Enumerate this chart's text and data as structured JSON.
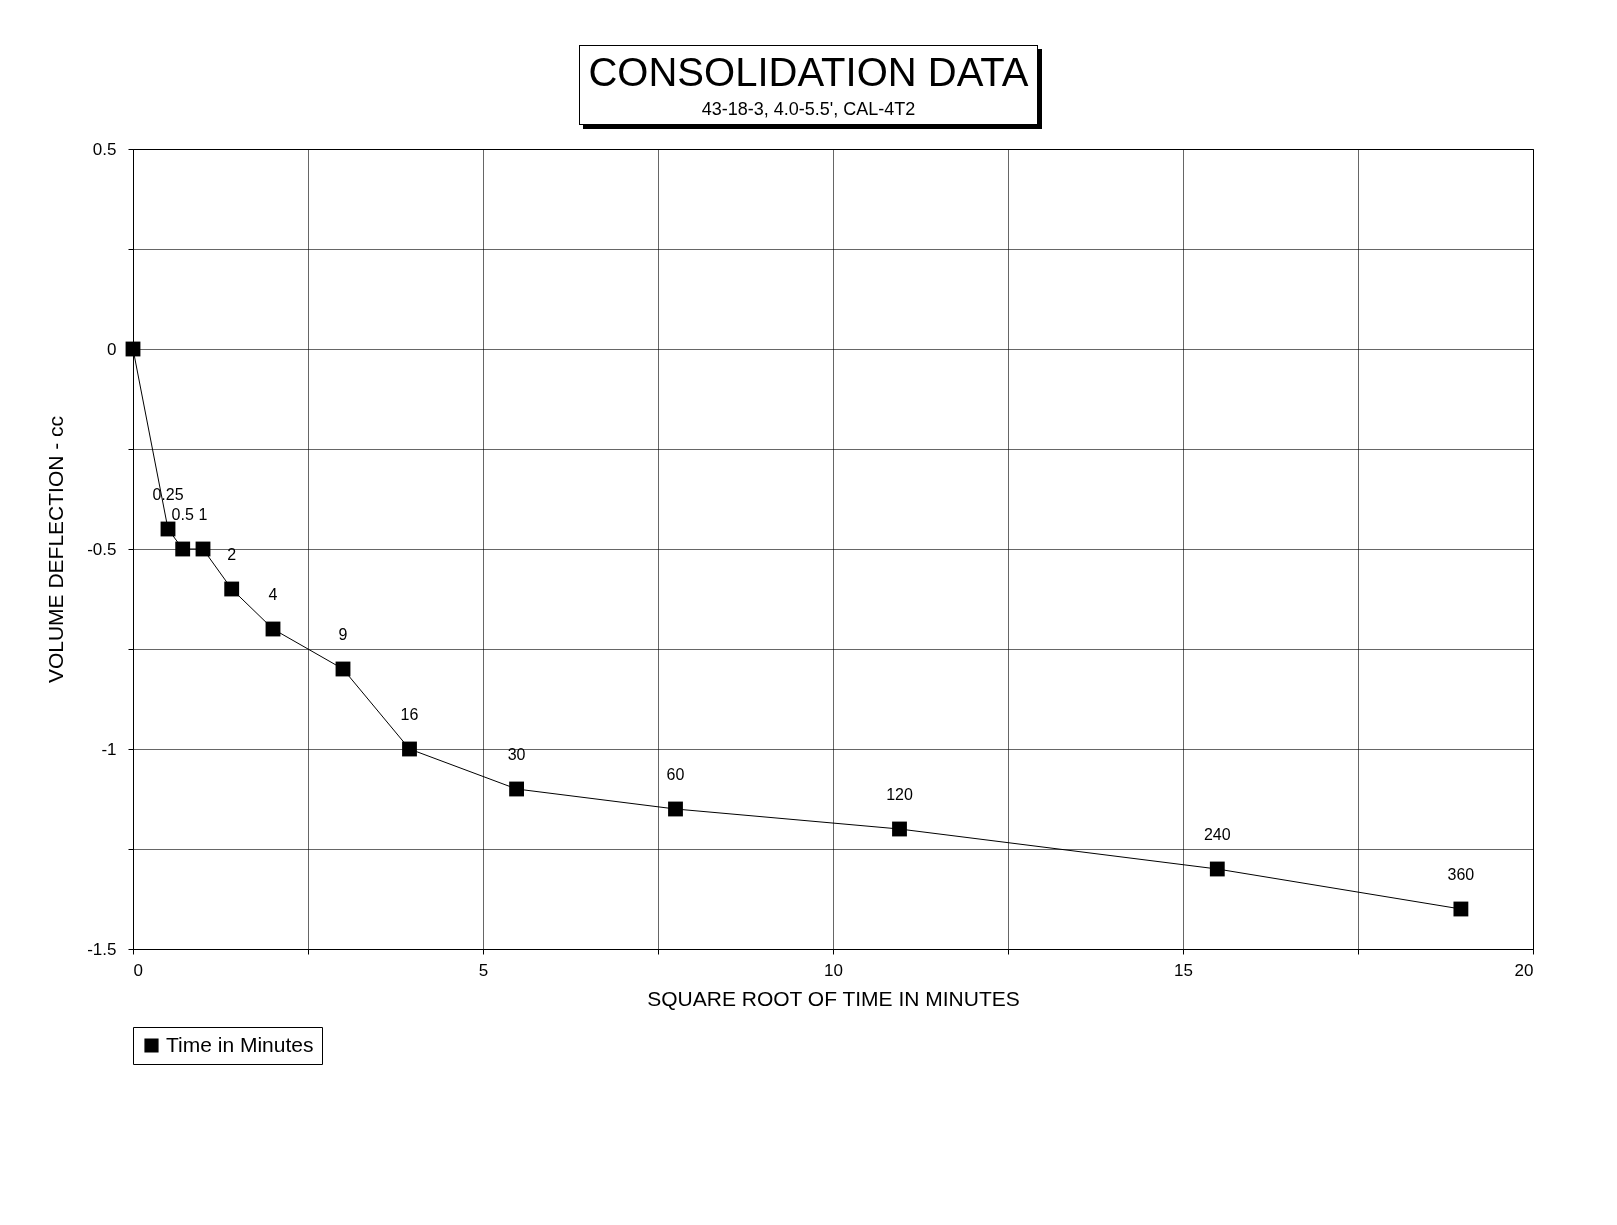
{
  "chart_data": {
    "type": "line",
    "title": "CONSOLIDATION DATA",
    "subtitle": "43-18-3, 4.0-5.5', CAL-4T2",
    "xlabel": "SQUARE ROOT OF TIME IN MINUTES",
    "ylabel": "VOLUME DEFLECTION - cc",
    "series": [
      {
        "name": "Time in Minutes",
        "color": "#000000",
        "x": [
          0,
          0.5,
          0.71,
          1,
          1.41,
          2,
          3,
          3.95,
          5.48,
          7.75,
          10.95,
          15.49,
          18.97
        ],
        "values": [
          0,
          -0.45,
          -0.5,
          -0.5,
          -0.6,
          -0.7,
          -0.8,
          -1,
          -1.1,
          -1.15,
          -1.2,
          -1.3,
          -1.4
        ]
      }
    ],
    "annotations": [
      {
        "text": "0.25",
        "x": 0.5,
        "y": -0.45
      },
      {
        "text": "0.5",
        "x": 0.71,
        "y": -0.5
      },
      {
        "text": "1",
        "x": 1,
        "y": -0.5
      },
      {
        "text": "2",
        "x": 1.41,
        "y": -0.6
      },
      {
        "text": "4",
        "x": 2,
        "y": -0.7
      },
      {
        "text": "9",
        "x": 3,
        "y": -0.8
      },
      {
        "text": "16",
        "x": 3.95,
        "y": -1
      },
      {
        "text": "30",
        "x": 5.48,
        "y": -1.1
      },
      {
        "text": "60",
        "x": 7.75,
        "y": -1.15
      },
      {
        "text": "120",
        "x": 10.95,
        "y": -1.2
      },
      {
        "text": "240",
        "x": 15.49,
        "y": -1.3
      },
      {
        "text": "360",
        "x": 18.97,
        "y": -1.4
      }
    ],
    "xlim": [
      0,
      20
    ],
    "xticks": [
      0,
      {
        "value": 2.5,
        "label": null
      },
      5,
      {
        "value": 7.5,
        "label": null
      },
      10,
      {
        "value": 12.5,
        "label": null
      },
      15,
      {
        "value": 17.5,
        "label": null
      },
      20
    ],
    "ylim": [
      -1.5,
      0.5
    ],
    "yticks": [
      -1.5,
      {
        "value": -1.25,
        "label": null
      },
      -1,
      {
        "value": -0.75,
        "label": null
      },
      -0.5,
      {
        "value": -0.25,
        "label": null
      },
      0,
      {
        "value": 0.25,
        "label": null
      },
      0.5
    ],
    "grid": true,
    "legend": "bottom",
    "marker": "square",
    "line_style": "solid"
  }
}
